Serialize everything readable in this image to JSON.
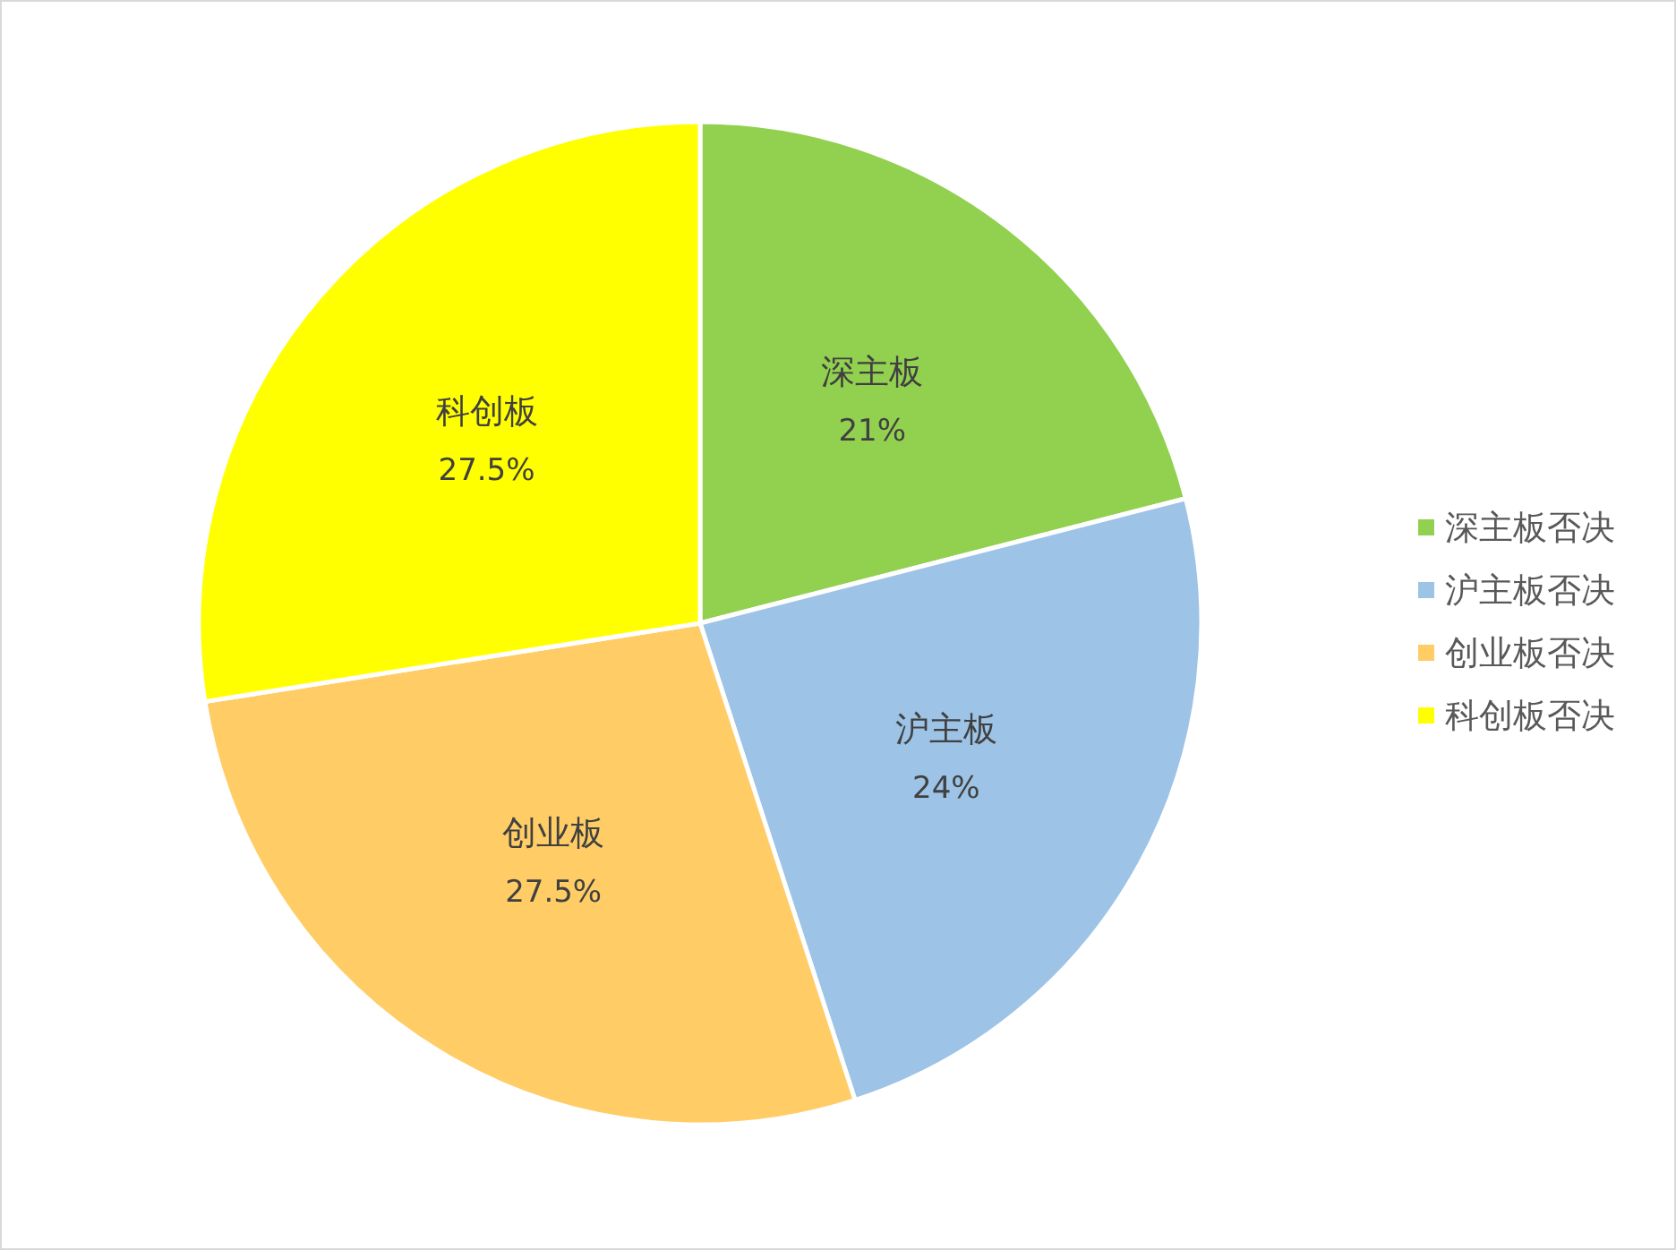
{
  "chart_data": {
    "type": "pie",
    "categories": [
      "深主板否决",
      "沪主板否决",
      "创业板否决",
      "科创板否决"
    ],
    "values": [
      21,
      24,
      27.5,
      27.5
    ],
    "colors": [
      "#92d050",
      "#9dc3e6",
      "#ffcc66",
      "#ffff00"
    ],
    "value_labels": [
      "21%",
      "24%",
      "27.5%",
      "27.5%"
    ],
    "annotations": [
      {
        "text": "深主板",
        "x": "深主板否决"
      },
      {
        "text": "沪主板",
        "x": "沪主板否决"
      },
      {
        "text": "创业板",
        "x": "创业板否决"
      },
      {
        "text": "科创板",
        "x": "科创板否决"
      }
    ],
    "legend": "right"
  }
}
